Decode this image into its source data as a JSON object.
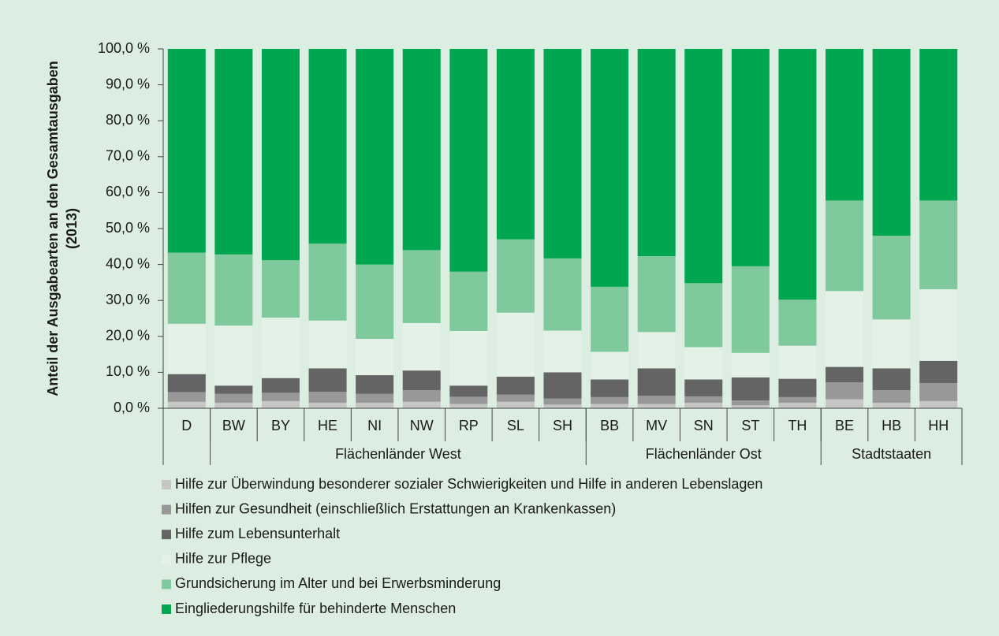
{
  "chart_data": {
    "type": "stacked_bar",
    "ylabel": "Anteil der Ausgabearten an den Gesamtausgaben (2013)",
    "ylabel_lines": [
      "Anteil der Ausgabearten an den Gesamtausgaben",
      "(2013)"
    ],
    "categories": [
      "D",
      "BW",
      "BY",
      "HE",
      "NI",
      "NW",
      "RP",
      "SL",
      "SH",
      "BB",
      "MV",
      "SN",
      "ST",
      "TH",
      "BE",
      "HB",
      "HH"
    ],
    "groups": [
      {
        "name": null,
        "size": 1
      },
      {
        "name": "Flächenländer West",
        "size": 8
      },
      {
        "name": "Flächenländer Ost",
        "size": 5
      },
      {
        "name": "Stadtstaaten",
        "size": 3
      }
    ],
    "series": [
      {
        "name": "Hilfe zur Überwindung besonderer sozialer Schwierigkeiten und Hilfe in anderen Lebenslagen",
        "color": "#c6c6c6",
        "values": [
          1.8,
          1.5,
          2.0,
          1.5,
          1.5,
          1.8,
          1.2,
          1.8,
          1.0,
          1.2,
          1.2,
          1.5,
          0.8,
          1.5,
          2.5,
          1.5,
          2.0
        ]
      },
      {
        "name": "Hilfen zur Gesundheit (einschließlich Erstattungen an Krankenkassen)",
        "color": "#989898",
        "values": [
          2.7,
          2.5,
          2.3,
          3.1,
          2.5,
          3.2,
          2.0,
          2.0,
          1.7,
          1.9,
          2.3,
          1.8,
          1.4,
          1.6,
          4.7,
          3.5,
          5.0
        ]
      },
      {
        "name": "Hilfe zum Lebensunterhalt",
        "color": "#646464",
        "values": [
          5.0,
          2.3,
          4.1,
          6.5,
          5.2,
          5.5,
          3.1,
          5.0,
          7.3,
          4.9,
          7.6,
          4.7,
          6.4,
          5.1,
          4.3,
          6.1,
          6.2
        ]
      },
      {
        "name": "Hilfe zur Pflege",
        "color": "#e3f1e7",
        "values": [
          14.0,
          16.7,
          16.8,
          13.3,
          10.1,
          13.2,
          15.2,
          17.8,
          11.6,
          7.7,
          10.1,
          9.0,
          6.8,
          9.2,
          21.1,
          13.6,
          19.9
        ]
      },
      {
        "name": "Grundsicherung im Alter und bei Erwerbsminderung",
        "color": "#80c99c",
        "values": [
          19.8,
          19.8,
          16.0,
          21.4,
          20.7,
          20.3,
          16.5,
          20.4,
          20.1,
          18.1,
          21.1,
          17.8,
          24.1,
          12.8,
          25.2,
          23.3,
          24.7
        ]
      },
      {
        "name": "Eingliederungshilfe für behinderte Menschen",
        "color": "#00a650",
        "values": [
          56.7,
          57.2,
          58.8,
          54.2,
          60.0,
          56.0,
          62.0,
          53.0,
          58.3,
          66.2,
          57.7,
          65.2,
          60.5,
          69.8,
          42.2,
          52.0,
          42.2
        ]
      }
    ],
    "ylim": [
      0,
      100
    ],
    "yticks": [
      {
        "value": 0,
        "label": "0,0 %"
      },
      {
        "value": 10,
        "label": "10,0 %"
      },
      {
        "value": 20,
        "label": "20,0 %"
      },
      {
        "value": 30,
        "label": "30,0 %"
      },
      {
        "value": 40,
        "label": "40,0 %"
      },
      {
        "value": 50,
        "label": "50,0 %"
      },
      {
        "value": 60,
        "label": "60,0 %"
      },
      {
        "value": 70,
        "label": "70,0 %"
      },
      {
        "value": 80,
        "label": "80,0 %"
      },
      {
        "value": 90,
        "label": "90,0 %"
      },
      {
        "value": 100,
        "label": "100,0 %"
      }
    ],
    "background": "#dcede1"
  }
}
